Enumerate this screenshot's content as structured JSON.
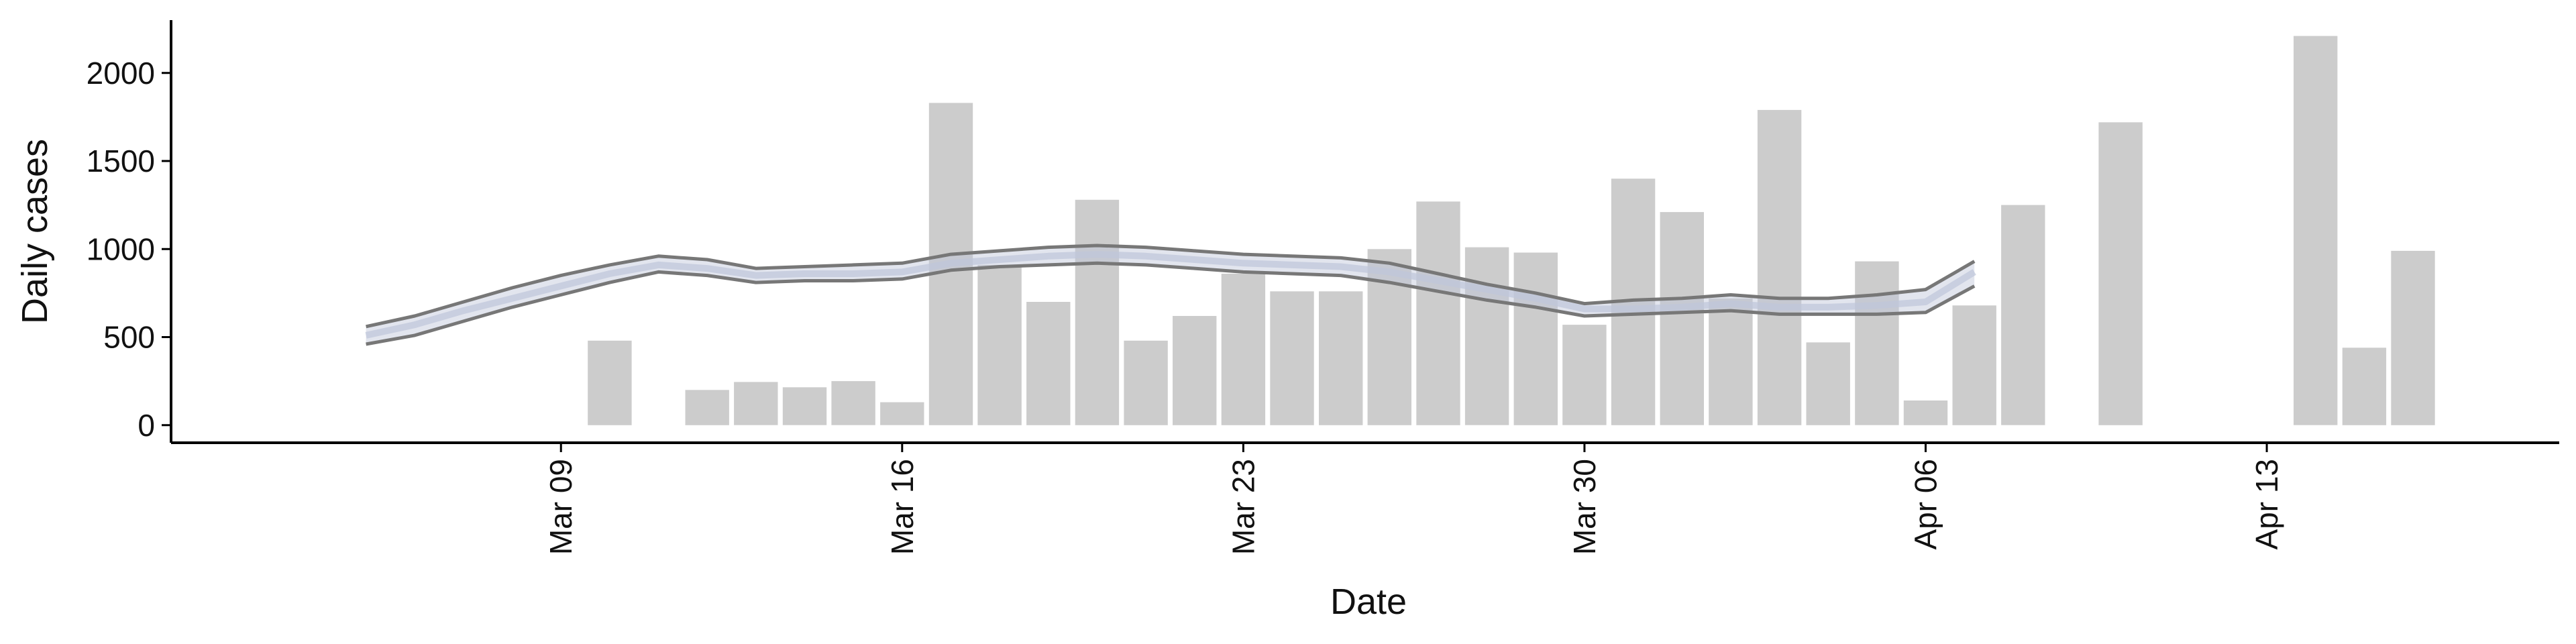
{
  "chart_data": {
    "type": "bar",
    "xlabel": "Date",
    "ylabel": "Daily cases",
    "ylim": [
      -100,
      2300
    ],
    "y_ticks": [
      0,
      500,
      1000,
      1500,
      2000
    ],
    "x_range": [
      "2020-03-01",
      "2020-04-19"
    ],
    "x_ticks": [
      {
        "date": "2020-03-09",
        "label": "Mar 09"
      },
      {
        "date": "2020-03-16",
        "label": "Mar 16"
      },
      {
        "date": "2020-03-23",
        "label": "Mar 23"
      },
      {
        "date": "2020-03-30",
        "label": "Mar 30"
      },
      {
        "date": "2020-04-06",
        "label": "Apr 06"
      },
      {
        "date": "2020-04-13",
        "label": "Apr 13"
      }
    ],
    "grid": false,
    "colors": {
      "bars": "#cccccc",
      "band": "#bfc6da",
      "bound_lines": "#777777",
      "axis": "#000000"
    },
    "bars": [
      {
        "date": "2020-03-10",
        "value": 480
      },
      {
        "date": "2020-03-12",
        "value": 200
      },
      {
        "date": "2020-03-13",
        "value": 245
      },
      {
        "date": "2020-03-14",
        "value": 215
      },
      {
        "date": "2020-03-15",
        "value": 250
      },
      {
        "date": "2020-03-16",
        "value": 130
      },
      {
        "date": "2020-03-17",
        "value": 1830
      },
      {
        "date": "2020-03-18",
        "value": 910
      },
      {
        "date": "2020-03-19",
        "value": 700
      },
      {
        "date": "2020-03-20",
        "value": 1280
      },
      {
        "date": "2020-03-21",
        "value": 480
      },
      {
        "date": "2020-03-22",
        "value": 620
      },
      {
        "date": "2020-03-23",
        "value": 860
      },
      {
        "date": "2020-03-24",
        "value": 760
      },
      {
        "date": "2020-03-25",
        "value": 760
      },
      {
        "date": "2020-03-26",
        "value": 1000
      },
      {
        "date": "2020-03-27",
        "value": 1270
      },
      {
        "date": "2020-03-28",
        "value": 1010
      },
      {
        "date": "2020-03-29",
        "value": 980
      },
      {
        "date": "2020-03-30",
        "value": 570
      },
      {
        "date": "2020-03-31",
        "value": 1400
      },
      {
        "date": "2020-04-01",
        "value": 1210
      },
      {
        "date": "2020-04-02",
        "value": 720
      },
      {
        "date": "2020-04-03",
        "value": 1790
      },
      {
        "date": "2020-04-04",
        "value": 470
      },
      {
        "date": "2020-04-05",
        "value": 930
      },
      {
        "date": "2020-04-06",
        "value": 140
      },
      {
        "date": "2020-04-07",
        "value": 680
      },
      {
        "date": "2020-04-08",
        "value": 1250
      },
      {
        "date": "2020-04-10",
        "value": 1720
      },
      {
        "date": "2020-04-14",
        "value": 2210
      },
      {
        "date": "2020-04-15",
        "value": 440
      },
      {
        "date": "2020-04-16",
        "value": 990
      }
    ],
    "estimate": {
      "dates": [
        "2020-03-05",
        "2020-03-06",
        "2020-03-07",
        "2020-03-08",
        "2020-03-09",
        "2020-03-10",
        "2020-03-11",
        "2020-03-12",
        "2020-03-13",
        "2020-03-14",
        "2020-03-15",
        "2020-03-16",
        "2020-03-17",
        "2020-03-18",
        "2020-03-19",
        "2020-03-20",
        "2020-03-21",
        "2020-03-22",
        "2020-03-23",
        "2020-03-24",
        "2020-03-25",
        "2020-03-26",
        "2020-03-27",
        "2020-03-28",
        "2020-03-29",
        "2020-03-30",
        "2020-03-31",
        "2020-04-01",
        "2020-04-02",
        "2020-04-03",
        "2020-04-04",
        "2020-04-05",
        "2020-04-06",
        "2020-04-07"
      ],
      "median": [
        510,
        570,
        650,
        720,
        790,
        860,
        910,
        890,
        850,
        860,
        860,
        870,
        920,
        940,
        960,
        970,
        960,
        940,
        920,
        910,
        900,
        870,
        820,
        770,
        720,
        660,
        660,
        670,
        690,
        670,
        670,
        680,
        700,
        870
      ],
      "lower": [
        460,
        510,
        590,
        670,
        740,
        810,
        870,
        850,
        810,
        820,
        820,
        830,
        880,
        900,
        910,
        920,
        910,
        890,
        870,
        860,
        850,
        810,
        760,
        710,
        670,
        620,
        630,
        640,
        650,
        630,
        630,
        630,
        640,
        790
      ],
      "upper": [
        560,
        620,
        700,
        780,
        850,
        910,
        960,
        940,
        890,
        900,
        910,
        920,
        970,
        990,
        1010,
        1020,
        1010,
        990,
        970,
        960,
        950,
        920,
        860,
        800,
        750,
        690,
        710,
        720,
        740,
        720,
        720,
        740,
        770,
        930
      ]
    }
  }
}
